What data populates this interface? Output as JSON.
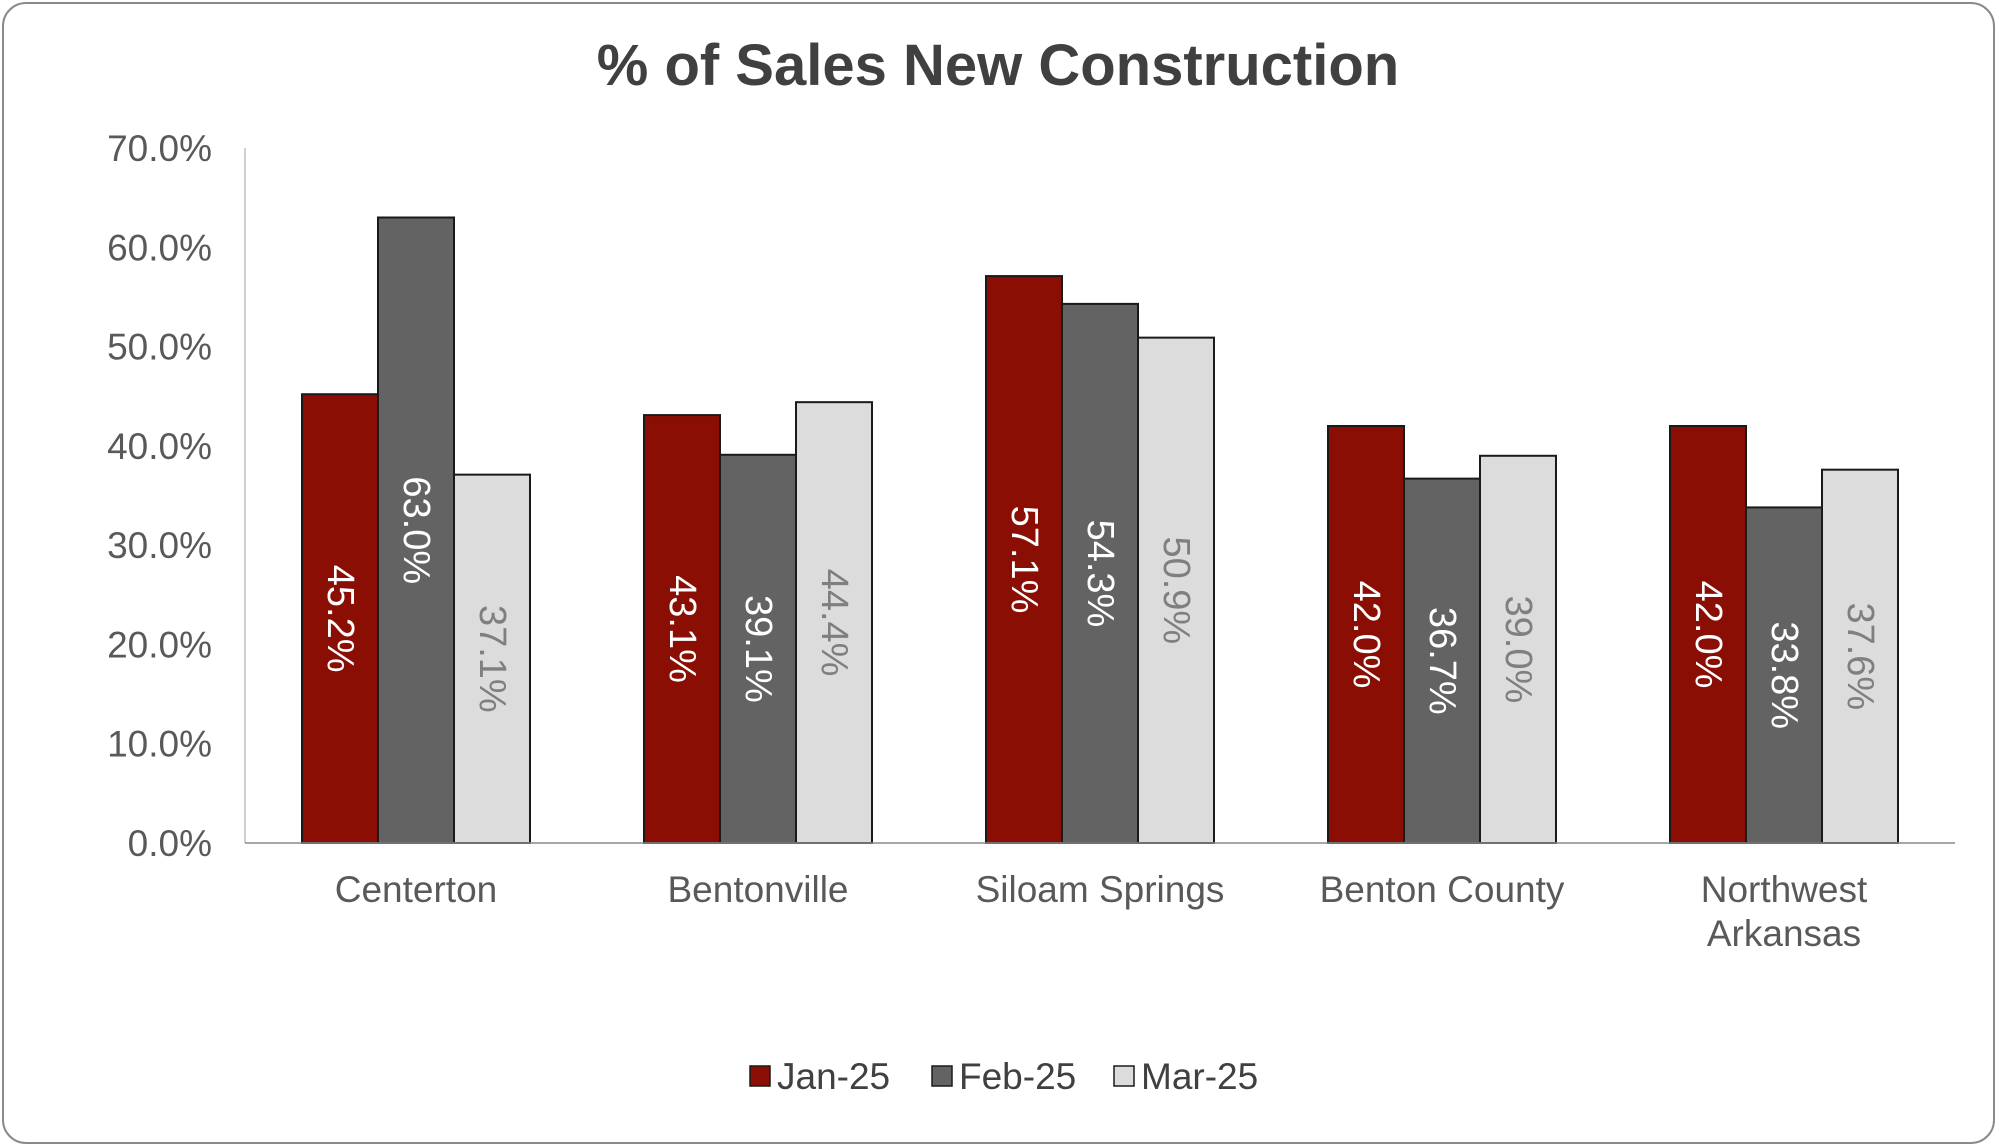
{
  "chart_data": {
    "type": "bar",
    "title": "% of Sales New Construction",
    "categories": [
      "Centerton",
      "Bentonville",
      "Siloam Springs",
      "Benton County",
      "Northwest Arkansas"
    ],
    "category_lines": [
      [
        "Centerton"
      ],
      [
        "Bentonville"
      ],
      [
        "Siloam Springs"
      ],
      [
        "Benton County"
      ],
      [
        "Northwest",
        "Arkansas"
      ]
    ],
    "series": [
      {
        "name": "Jan-25",
        "color": "#8b0e04",
        "label_color": "#ffffff",
        "values": [
          45.2,
          43.1,
          57.1,
          42.0,
          42.0
        ],
        "labels": [
          "45.2%",
          "43.1%",
          "57.1%",
          "42.0%",
          "42.0%"
        ]
      },
      {
        "name": "Feb-25",
        "color": "#636363",
        "label_color": "#ffffff",
        "values": [
          63.0,
          39.1,
          54.3,
          36.7,
          33.8
        ],
        "labels": [
          "63.0%",
          "39.1%",
          "54.3%",
          "36.7%",
          "33.8%"
        ]
      },
      {
        "name": "Mar-25",
        "color": "#dcdcdc",
        "label_color": "#7f7f7f",
        "values": [
          37.1,
          44.4,
          50.9,
          39.0,
          37.6
        ],
        "labels": [
          "37.1%",
          "44.4%",
          "50.9%",
          "39.0%",
          "37.6%"
        ]
      }
    ],
    "ylim": [
      0,
      70
    ],
    "yticks": [
      0,
      10,
      20,
      30,
      40,
      50,
      60,
      70
    ],
    "ytick_labels": [
      "0.0%",
      "10.0%",
      "20.0%",
      "30.0%",
      "40.0%",
      "50.0%",
      "60.0%",
      "70.0%"
    ],
    "xlabel": "",
    "ylabel": "",
    "grid": false,
    "legend_position": "bottom",
    "data_label_orientation": "rotated-vertical"
  }
}
